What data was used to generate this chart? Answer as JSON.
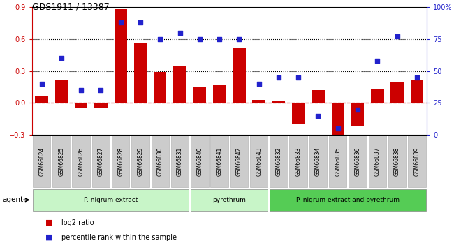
{
  "title": "GDS1911 / 13387",
  "samples": [
    "GSM66824",
    "GSM66825",
    "GSM66826",
    "GSM66827",
    "GSM66828",
    "GSM66829",
    "GSM66830",
    "GSM66831",
    "GSM66840",
    "GSM66841",
    "GSM66842",
    "GSM66843",
    "GSM66832",
    "GSM66833",
    "GSM66834",
    "GSM66835",
    "GSM66836",
    "GSM66837",
    "GSM66838",
    "GSM66839"
  ],
  "log2_ratio": [
    0.07,
    0.22,
    -0.04,
    -0.04,
    0.88,
    0.57,
    0.29,
    0.35,
    0.15,
    0.17,
    0.52,
    0.03,
    0.02,
    -0.2,
    0.12,
    -0.33,
    -0.22,
    0.13,
    0.2,
    0.21
  ],
  "percentile_rank": [
    40,
    60,
    35,
    35,
    88,
    88,
    75,
    80,
    75,
    75,
    75,
    40,
    45,
    45,
    15,
    5,
    20,
    58,
    77,
    45
  ],
  "bar_color": "#cc0000",
  "dot_color": "#2222cc",
  "ylim_left": [
    -0.3,
    0.9
  ],
  "ylim_right": [
    0,
    100
  ],
  "yticks_left": [
    -0.3,
    0.0,
    0.3,
    0.6,
    0.9
  ],
  "yticks_right": [
    0,
    25,
    50,
    75,
    100
  ],
  "dotted_lines": [
    0.3,
    0.6
  ],
  "group_defs": [
    [
      0,
      8,
      "P. nigrum extract",
      "#c8f5c8"
    ],
    [
      8,
      12,
      "pyrethrum",
      "#c8f5c8"
    ],
    [
      12,
      20,
      "P. nigrum extract and pyrethrum",
      "#55cc55"
    ]
  ],
  "legend_items": [
    "log2 ratio",
    "percentile rank within the sample"
  ],
  "legend_colors": [
    "#cc0000",
    "#2222cc"
  ],
  "agent_label": "agent",
  "tick_bg_color": "#cccccc",
  "tick_border_color": "#aaaaaa"
}
